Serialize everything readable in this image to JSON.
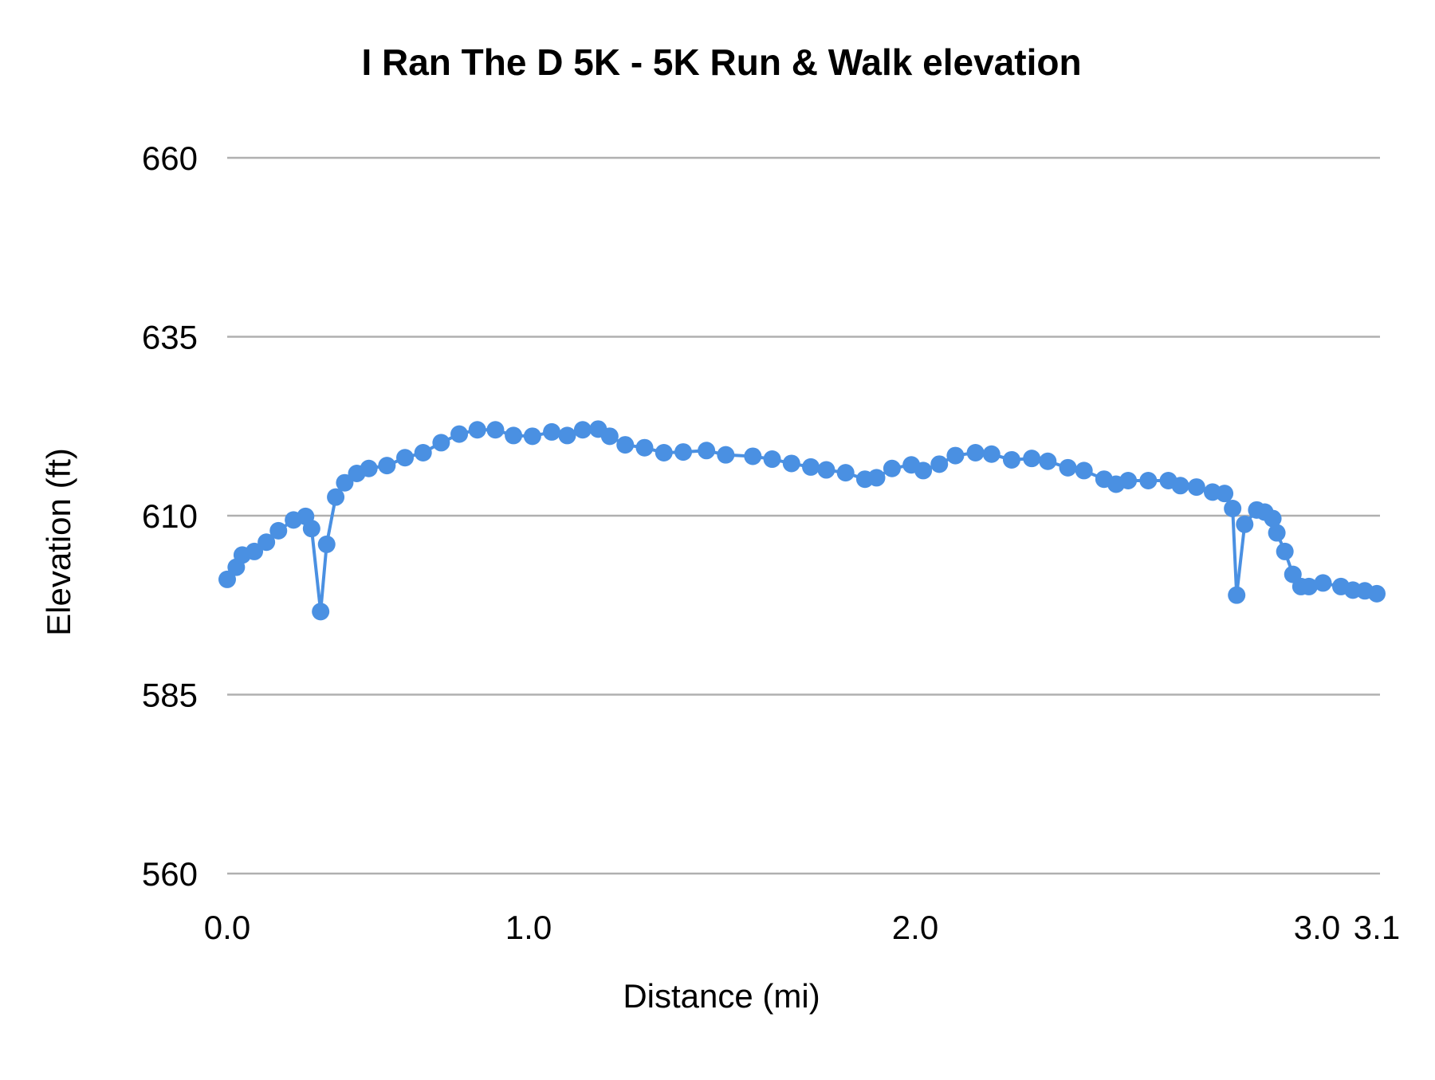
{
  "chart_data": {
    "type": "line",
    "title": "I Ran The D 5K - 5K Run & Walk elevation",
    "xlabel": "Distance (mi)",
    "ylabel": "Elevation (ft)",
    "ylim": [
      560,
      660
    ],
    "yticks": [
      "560",
      "585",
      "610",
      "635",
      "660"
    ],
    "xticks": [
      {
        "value": 0.0,
        "label": "0.0"
      },
      {
        "value": 1.0,
        "label": "1.0"
      },
      {
        "value": 2.0,
        "label": "2.0"
      },
      {
        "value": 3.0,
        "label": "3.0"
      },
      {
        "value": 3.1,
        "label": "3.1"
      }
    ],
    "grid": true,
    "markers": true,
    "color": "#4a90e2",
    "grid_color": "#b0b0b0",
    "x": [
      0.0,
      0.03,
      0.05,
      0.09,
      0.13,
      0.17,
      0.22,
      0.26,
      0.28,
      0.31,
      0.33,
      0.36,
      0.39,
      0.43,
      0.47,
      0.53,
      0.59,
      0.65,
      0.71,
      0.77,
      0.83,
      0.89,
      0.95,
      1.01,
      1.06,
      1.1,
      1.14,
      1.18,
      1.21,
      1.25,
      1.3,
      1.35,
      1.4,
      1.46,
      1.51,
      1.58,
      1.63,
      1.68,
      1.73,
      1.77,
      1.82,
      1.87,
      1.9,
      1.94,
      1.99,
      2.02,
      2.06,
      2.1,
      2.15,
      2.19,
      2.24,
      2.29,
      2.33,
      2.38,
      2.42,
      2.47,
      2.5,
      2.53,
      2.58,
      2.63,
      2.66,
      2.7,
      2.74,
      2.77,
      2.79,
      2.8,
      2.82,
      2.85,
      2.87,
      2.89,
      2.9,
      2.92,
      2.94,
      2.96,
      2.98,
      3.01,
      3.04,
      3.06,
      3.08,
      3.1
    ],
    "y": [
      601.1,
      602.8,
      604.5,
      605.0,
      606.3,
      607.9,
      609.4,
      609.9,
      608.2,
      596.6,
      606.0,
      612.6,
      614.6,
      615.9,
      616.6,
      617.0,
      618.1,
      618.8,
      620.2,
      621.4,
      622.0,
      622.0,
      621.2,
      621.1,
      621.7,
      621.2,
      622.0,
      622.1,
      621.1,
      619.9,
      619.5,
      618.8,
      618.9,
      619.1,
      618.5,
      618.3,
      617.9,
      617.3,
      616.8,
      616.4,
      616.0,
      615.1,
      615.3,
      616.6,
      617.1,
      616.3,
      617.2,
      618.4,
      618.8,
      618.6,
      617.8,
      618.0,
      617.6,
      616.7,
      616.3,
      615.1,
      614.4,
      614.9,
      614.9,
      614.9,
      614.2,
      614.0,
      613.3,
      613.1,
      611.0,
      598.9,
      608.8,
      610.8,
      610.5,
      609.6,
      607.6,
      605.0,
      601.8,
      600.1,
      600.1,
      600.6,
      600.1,
      599.6,
      599.5,
      599.1
    ]
  }
}
